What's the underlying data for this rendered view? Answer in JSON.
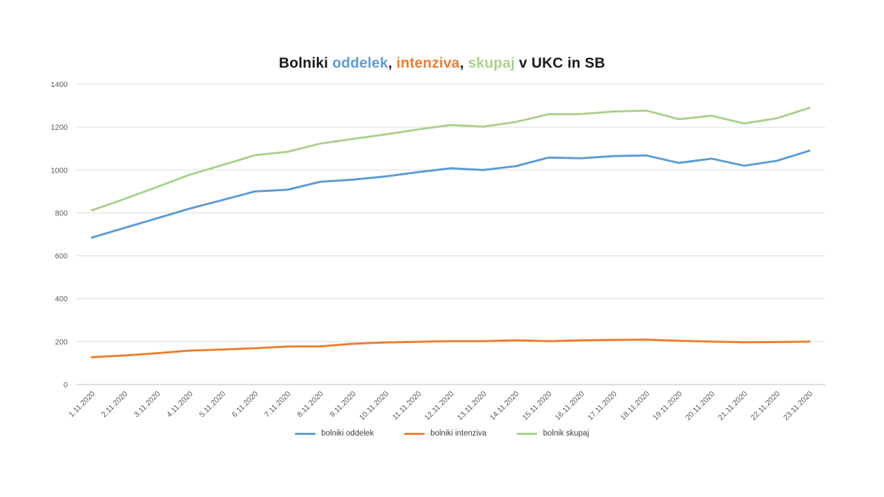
{
  "title": {
    "parts": [
      {
        "text": "Bolniki ",
        "color": "#1a1a1a"
      },
      {
        "text": "oddelek",
        "color": "#5b9bd5"
      },
      {
        "text": ", ",
        "color": "#1a1a1a"
      },
      {
        "text": "intenziva",
        "color": "#ed7d31"
      },
      {
        "text": ", ",
        "color": "#1a1a1a"
      },
      {
        "text": "skupaj",
        "color": "#a9d18e"
      },
      {
        "text": " v UKC in SB",
        "color": "#1a1a1a"
      }
    ]
  },
  "chart_data": {
    "type": "line",
    "title": "Bolniki oddelek, intenziva, skupaj v UKC in SB",
    "x": [
      "1.11.2020",
      "2.11.2020",
      "3.11.2020",
      "4.11.2020",
      "5.11.2020",
      "6.11.2020",
      "7.11.2020",
      "8.11.2020",
      "9.11.2020",
      "10.11.2020",
      "11.11.2020",
      "12.11.2020",
      "13.11.2020",
      "14.11.2020",
      "15.11.2020",
      "16.11.2020",
      "17.11.2020",
      "18.11.2020",
      "19.11.2020",
      "20.11.2020",
      "21.11.2020",
      "22.11.2020",
      "23.11.2020"
    ],
    "series": [
      {
        "name": "bolniki oddelek",
        "color": "#5b9bd5",
        "values": [
          685,
          730,
          775,
          820,
          860,
          900,
          908,
          945,
          955,
          970,
          990,
          1008,
          1000,
          1018,
          1058,
          1055,
          1065,
          1068,
          1033,
          1053,
          1020,
          1043,
          1090
        ]
      },
      {
        "name": "bolniki intenziva",
        "color": "#ed7d31",
        "values": [
          127,
          135,
          146,
          158,
          163,
          169,
          177,
          178,
          190,
          196,
          199,
          202,
          202,
          206,
          202,
          206,
          208,
          209,
          204,
          200,
          197,
          198,
          200
        ]
      },
      {
        "name": "bolnik skupaj",
        "color": "#a9d18e",
        "values": [
          812,
          865,
          921,
          978,
          1023,
          1069,
          1085,
          1123,
          1145,
          1166,
          1189,
          1210,
          1202,
          1224,
          1260,
          1261,
          1273,
          1277,
          1237,
          1253,
          1217,
          1241,
          1290
        ]
      }
    ],
    "ylim": [
      0,
      1400
    ],
    "yticks": [
      0,
      200,
      400,
      600,
      800,
      1000,
      1200,
      1400
    ],
    "xlabel": "",
    "ylabel": "",
    "grid": true,
    "legend_position": "bottom",
    "grid_color": "#dcdcdc",
    "axis_line_color": "#bfbfbf"
  }
}
